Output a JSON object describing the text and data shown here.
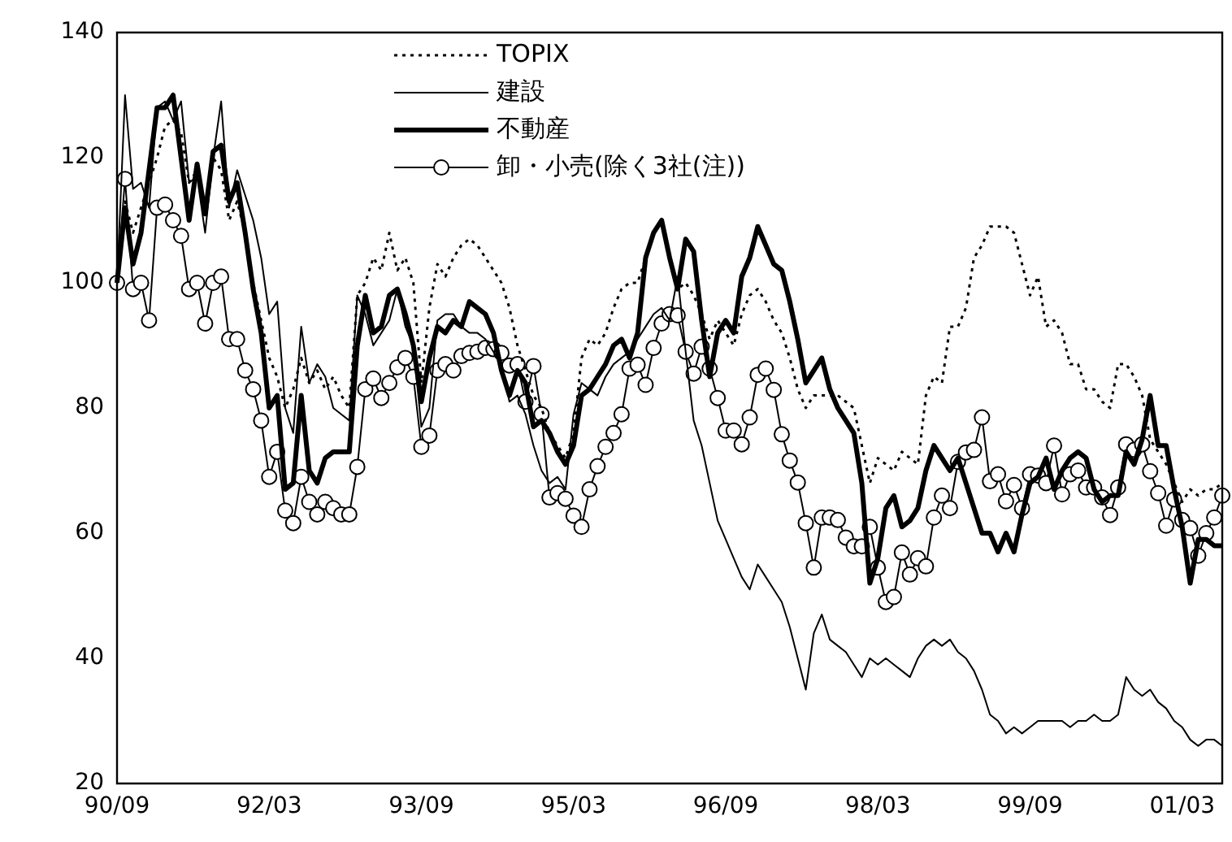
{
  "chart_data": {
    "type": "line",
    "categories": [
      "90/09",
      null,
      null,
      null,
      null,
      null,
      null,
      null,
      null,
      null,
      null,
      null,
      null,
      null,
      null,
      null,
      null,
      null,
      null,
      "92/03",
      null,
      null,
      null,
      null,
      null,
      null,
      null,
      null,
      null,
      null,
      null,
      null,
      null,
      null,
      null,
      null,
      null,
      null,
      "93/09",
      null,
      null,
      null,
      null,
      null,
      null,
      null,
      null,
      null,
      null,
      null,
      null,
      null,
      null,
      null,
      null,
      null,
      null,
      "95/03",
      null,
      null,
      null,
      null,
      null,
      null,
      null,
      null,
      null,
      null,
      null,
      null,
      null,
      null,
      null,
      null,
      null,
      null,
      "96/09",
      null,
      null,
      null,
      null,
      null,
      null,
      null,
      null,
      null,
      null,
      null,
      null,
      null,
      null,
      null,
      null,
      null,
      null,
      "98/03",
      null,
      null,
      null,
      null,
      null,
      null,
      null,
      null,
      null,
      null,
      null,
      null,
      null,
      null,
      null,
      null,
      null,
      null,
      "99/09",
      null,
      null,
      null,
      null,
      null,
      null,
      null,
      null,
      null,
      null,
      null,
      null,
      null,
      null,
      null,
      null,
      null,
      null,
      "01/03",
      null,
      null,
      null,
      null,
      null
    ],
    "series": [
      {
        "name": "TOPIX",
        "color": "#000000",
        "line_style": "dotted",
        "marker": "none",
        "values": [
          100,
          113,
          108,
          112,
          116,
          120,
          125,
          126,
          124,
          116,
          118,
          112,
          120,
          118,
          110,
          113,
          108,
          100,
          94,
          88,
          85,
          80,
          83,
          88,
          84,
          86,
          83,
          85,
          82,
          80,
          98,
          100,
          104,
          102,
          108,
          102,
          104,
          100,
          84,
          96,
          103,
          101,
          104,
          106,
          107,
          106,
          104,
          102,
          100,
          96,
          90,
          86,
          82,
          80,
          76,
          74,
          72,
          76,
          88,
          91,
          90,
          92,
          96,
          99,
          100,
          100,
          104,
          108,
          110,
          104,
          99,
          100,
          98,
          95,
          91,
          94,
          92,
          90,
          95,
          98,
          99,
          97,
          94,
          92,
          88,
          83,
          80,
          82,
          82,
          82,
          82,
          81,
          80,
          74,
          68,
          72,
          71,
          70,
          73,
          72,
          71,
          82,
          85,
          84,
          93,
          93,
          96,
          104,
          106,
          109,
          109,
          109,
          108,
          103,
          98,
          101,
          93,
          94,
          92,
          87,
          87,
          83,
          83,
          81,
          80,
          87,
          87,
          85,
          82,
          75,
          73,
          71,
          68,
          65,
          67,
          66,
          67,
          67,
          68
        ]
      },
      {
        "name": "建設",
        "color": "#000000",
        "line_style": "solid",
        "marker": "none",
        "values": [
          100,
          130,
          115,
          116,
          112,
          128,
          129,
          126,
          129,
          116,
          117,
          108,
          120,
          129,
          112,
          118,
          114,
          110,
          104,
          95,
          97,
          80,
          76,
          93,
          84,
          87,
          85,
          80,
          79,
          78,
          98,
          95,
          90,
          92,
          94,
          99,
          93,
          90,
          77,
          80,
          94,
          95,
          95,
          93,
          92,
          92,
          91,
          89,
          87,
          81,
          82,
          79,
          74,
          70,
          68,
          69,
          67,
          79,
          84,
          83,
          82,
          85,
          87,
          88,
          89,
          91,
          93,
          95,
          96,
          94,
          101,
          89,
          78,
          74,
          68,
          62,
          59,
          56,
          53,
          51,
          55,
          53,
          51,
          49,
          45,
          40,
          35,
          44,
          47,
          43,
          42,
          41,
          39,
          37,
          40,
          39,
          40,
          39,
          38,
          37,
          40,
          42,
          43,
          42,
          43,
          41,
          40,
          38,
          35,
          31,
          30,
          28,
          29,
          28,
          29,
          30,
          30,
          30,
          30,
          29,
          30,
          30,
          31,
          30,
          30,
          31,
          37,
          35,
          34,
          35,
          33,
          32,
          30,
          29,
          27,
          26,
          27,
          27,
          26
        ]
      },
      {
        "name": "不動産",
        "color": "#000000",
        "line_style": "solid",
        "marker": "none",
        "values": [
          100,
          112,
          103,
          108,
          118,
          128,
          128,
          130,
          120,
          110,
          119,
          111,
          121,
          122,
          113,
          116,
          108,
          99,
          92,
          80,
          82,
          67,
          68,
          82,
          70,
          68,
          72,
          73,
          73,
          73,
          90,
          98,
          92,
          93,
          98,
          99,
          95,
          90,
          81,
          88,
          93,
          92,
          94,
          93,
          97,
          96,
          95,
          92,
          86,
          82,
          86,
          84,
          77,
          78,
          76,
          73,
          71,
          74,
          82,
          83,
          85,
          87,
          90,
          91,
          88,
          92,
          104,
          108,
          110,
          104,
          99,
          107,
          105,
          94,
          85,
          92,
          94,
          92,
          101,
          104,
          109,
          106,
          103,
          102,
          97,
          91,
          84,
          86,
          88,
          83,
          80,
          78,
          76,
          68,
          52,
          56,
          64,
          66,
          61,
          62,
          64,
          70,
          74,
          72,
          70,
          72,
          68,
          64,
          60,
          60,
          57,
          60,
          57,
          63,
          68,
          69,
          72,
          67,
          70,
          72,
          73,
          72,
          67,
          65,
          66,
          66,
          73,
          71,
          75,
          82,
          74,
          74,
          67,
          61,
          52,
          59,
          59,
          58,
          58
        ]
      },
      {
        "name": "卸・小売(除く3社(注))",
        "color": "#000000",
        "line_style": "solid",
        "marker": "circle",
        "values": [
          100,
          116.6,
          99,
          100,
          94,
          112,
          112.5,
          110,
          107.5,
          99,
          100,
          93.5,
          100,
          101,
          91,
          91,
          86,
          83,
          78,
          69,
          73,
          63.6,
          61.6,
          69,
          65,
          63,
          65,
          64,
          63,
          63,
          70.6,
          83,
          84.7,
          81.6,
          84,
          86.5,
          88,
          85,
          73.8,
          75.6,
          86,
          87,
          86,
          88.3,
          88.8,
          89,
          89.6,
          89.4,
          88.8,
          86.8,
          87,
          81,
          86.7,
          79,
          65.7,
          66.4,
          65.5,
          62.8,
          61,
          67,
          70.7,
          73.8,
          76,
          79,
          86.3,
          86.9,
          83.7,
          89.6,
          93.5,
          95,
          94.8,
          89,
          85.5,
          89.8,
          86.3,
          81.6,
          76.4,
          76.4,
          74.2,
          78.5,
          85.3,
          86.3,
          82.9,
          75.8,
          71.6,
          68.1,
          61.6,
          54.5,
          62.5,
          62.5,
          62.1,
          59.3,
          57.9,
          57.9,
          61,
          54.5,
          49,
          49.8,
          56.9,
          53.4,
          56,
          54.7,
          62.5,
          66,
          64,
          71.4,
          72.9,
          73.3,
          78.5,
          68.3,
          69.4,
          65.1,
          67.7,
          64,
          69.4,
          69.2,
          68,
          74,
          66.2,
          69.4,
          70,
          67.3,
          67.3,
          65.7,
          62.9,
          67.3,
          74.2,
          73.3,
          74.2,
          69.9,
          66.4,
          61.2,
          65.4,
          62.1,
          60.8,
          56.4,
          60,
          62.5,
          66
        ]
      }
    ],
    "ylim": [
      20,
      140
    ],
    "yticks": [
      20,
      40,
      60,
      80,
      100,
      120,
      140
    ],
    "grid": false,
    "legend": "top"
  }
}
